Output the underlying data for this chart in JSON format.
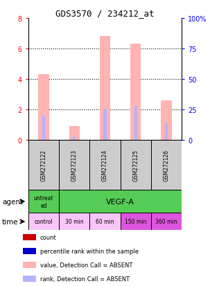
{
  "title": "GDS3570 / 234212_at",
  "samples": [
    "GSM272122",
    "GSM272123",
    "GSM272124",
    "GSM272125",
    "GSM272126"
  ],
  "bar_values_pink": [
    4.3,
    0.9,
    6.8,
    6.3,
    2.6
  ],
  "rank_values_blue": [
    1.6,
    0.2,
    2.0,
    2.2,
    1.1
  ],
  "ylim_left": [
    0,
    8
  ],
  "ylim_right": [
    0,
    100
  ],
  "yticks_left": [
    0,
    2,
    4,
    6,
    8
  ],
  "yticks_right": [
    0,
    25,
    50,
    75,
    100
  ],
  "time_labels": [
    "control",
    "30 min",
    "60 min",
    "150 min",
    "360 min"
  ],
  "time_colors": [
    "#f9c5f9",
    "#f9c5f9",
    "#f9c5f9",
    "#dd55dd",
    "#dd55dd"
  ],
  "bar_color_pink": "#ffb3b3",
  "bar_color_blue": "#b3b3ff",
  "legend_items": [
    {
      "color": "#cc0000",
      "label": "count"
    },
    {
      "color": "#0000cc",
      "label": "percentile rank within the sample"
    },
    {
      "color": "#ffb3b3",
      "label": "value, Detection Call = ABSENT"
    },
    {
      "color": "#b3b3ff",
      "label": "rank, Detection Call = ABSENT"
    }
  ],
  "background_color": "#ffffff",
  "sample_box_color": "#cccccc",
  "agent_green": "#55cc55",
  "grid_color": "#666666",
  "title_fontsize": 9,
  "bar_width": 0.35,
  "rank_bar_width": 0.1
}
